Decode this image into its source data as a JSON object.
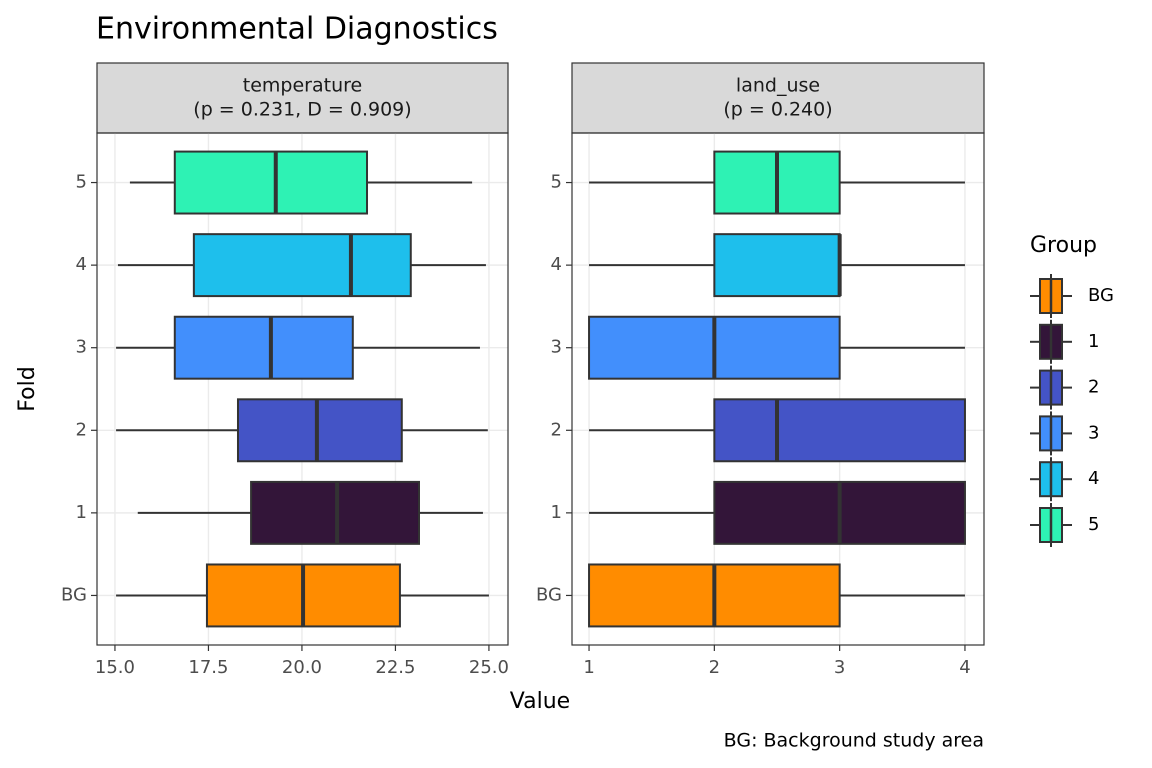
{
  "chart_data": {
    "type": "boxplot",
    "title": "Environmental Diagnostics",
    "x_label": "Value",
    "y_label": "Fold",
    "caption": "BG: Background study area",
    "legend_title": "Group",
    "legend_position": "right",
    "grid": true,
    "categories": [
      "BG",
      "1",
      "2",
      "3",
      "4",
      "5"
    ],
    "series": [
      {
        "name": "BG",
        "color": "#ff8c00"
      },
      {
        "name": "1",
        "color": "#331539"
      },
      {
        "name": "2",
        "color": "#4454c6"
      },
      {
        "name": "3",
        "color": "#428ffc"
      },
      {
        "name": "4",
        "color": "#1ebfec"
      },
      {
        "name": "5",
        "color": "#2ef2b4"
      }
    ],
    "panels": [
      {
        "strip": [
          "temperature",
          "(p = 0.231, D = 0.909)"
        ],
        "xlim": [
          14.52,
          25.51
        ],
        "xticks": [
          {
            "value": 15,
            "label": "15.0"
          },
          17.5,
          {
            "value": 20,
            "label": "20.0"
          },
          22.5,
          {
            "value": 25,
            "label": "25.0"
          }
        ],
        "values": [
          {
            "min": 15.03,
            "q1": 17.46,
            "median": 20.03,
            "q3": 22.62,
            "max": 25.0
          },
          {
            "min": 15.61,
            "q1": 18.64,
            "median": 20.94,
            "q3": 23.13,
            "max": 24.84
          },
          {
            "min": 15.03,
            "q1": 18.29,
            "median": 20.4,
            "q3": 22.67,
            "max": 24.97
          },
          {
            "min": 15.03,
            "q1": 16.6,
            "median": 19.17,
            "q3": 21.36,
            "max": 24.76
          },
          {
            "min": 15.08,
            "q1": 17.11,
            "median": 21.31,
            "q3": 22.91,
            "max": 24.92
          },
          {
            "min": 15.4,
            "q1": 16.6,
            "median": 19.3,
            "q3": 21.74,
            "max": 24.55
          }
        ]
      },
      {
        "strip": [
          "land_use",
          "(p = 0.240)"
        ],
        "xlim": [
          0.864,
          4.152
        ],
        "xticks": [
          1,
          2,
          3,
          4
        ],
        "values": [
          {
            "min": 1,
            "q1": 1,
            "median": 2,
            "q3": 3,
            "max": 4
          },
          {
            "min": 1,
            "q1": 2,
            "median": 3,
            "q3": 4,
            "max": 4
          },
          {
            "min": 1,
            "q1": 2,
            "median": 2.5,
            "q3": 4,
            "max": 4
          },
          {
            "min": 1,
            "q1": 1,
            "median": 2,
            "q3": 3,
            "max": 4
          },
          {
            "min": 1,
            "q1": 2,
            "median": 3,
            "q3": 3,
            "max": 4
          },
          {
            "min": 1,
            "q1": 2,
            "median": 2.5,
            "q3": 3,
            "max": 4
          }
        ]
      }
    ]
  }
}
